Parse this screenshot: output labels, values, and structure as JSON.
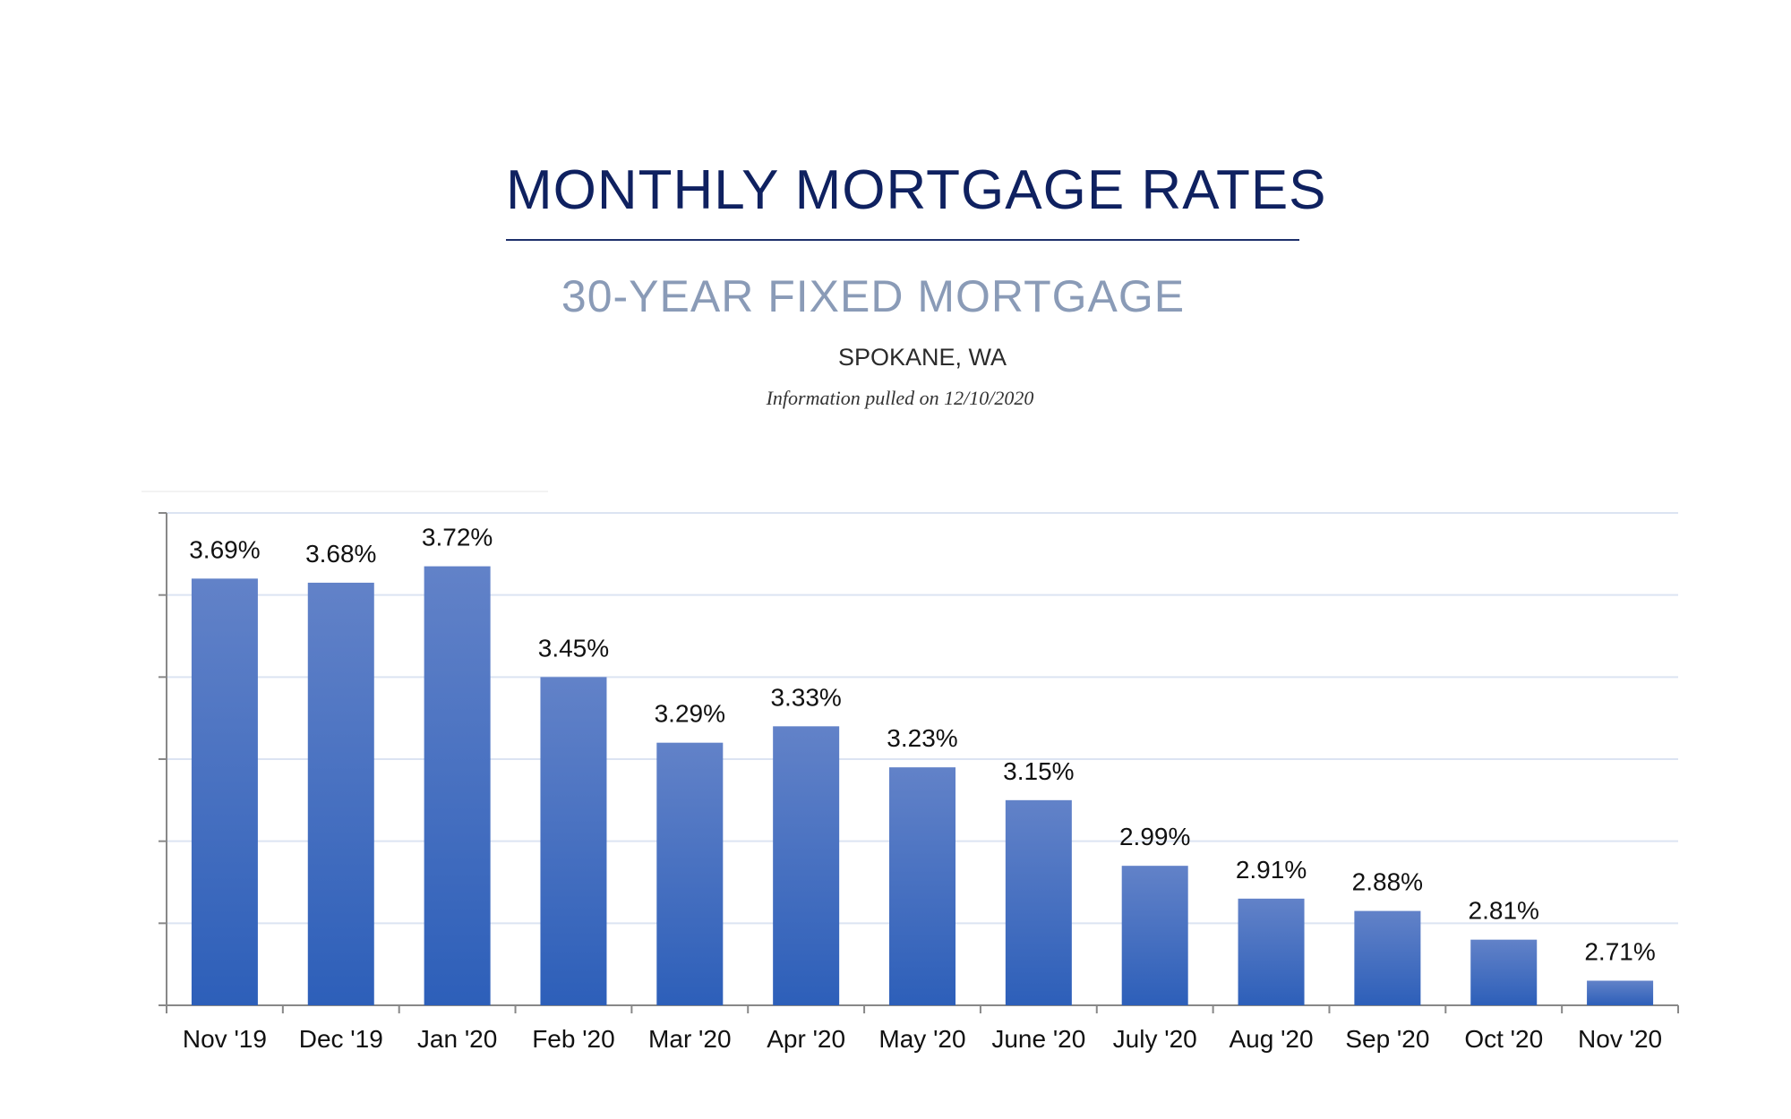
{
  "header": {
    "title": "MONTHLY MORTGAGE RATES",
    "subtitle": "30-YEAR FIXED MORTGAGE",
    "location": "SPOKANE, WA",
    "pulled_note": "Information pulled on 12/10/2020"
  },
  "chart_data": {
    "type": "bar",
    "title": "MONTHLY MORTGAGE RATES",
    "subtitle": "30-YEAR FIXED MORTGAGE",
    "categories": [
      "Nov '19",
      "Dec '19",
      "Jan '20",
      "Feb '20",
      "Mar '20",
      "Apr '20",
      "May '20",
      "June '20",
      "July '20",
      "Aug '20",
      "Sep '20",
      "Oct '20",
      "Nov '20"
    ],
    "values": [
      3.69,
      3.68,
      3.72,
      3.45,
      3.29,
      3.33,
      3.23,
      3.15,
      2.99,
      2.91,
      2.88,
      2.81,
      2.71
    ],
    "data_labels": [
      "3.69%",
      "3.68%",
      "3.72%",
      "3.45%",
      "3.29%",
      "3.33%",
      "3.23%",
      "3.15%",
      "2.99%",
      "2.91%",
      "2.88%",
      "2.81%",
      "2.71%"
    ],
    "xlabel": "",
    "ylabel": "",
    "ylim": [
      2.65,
      3.85
    ],
    "ytick_step": 0.2,
    "y_tick_labels_shown": false,
    "grid": true,
    "legend": "none",
    "colors": {
      "bar_top": "#6282c8",
      "bar_bottom": "#2d5fb9",
      "grid": "#dce4f2",
      "axis": "#888888"
    }
  }
}
